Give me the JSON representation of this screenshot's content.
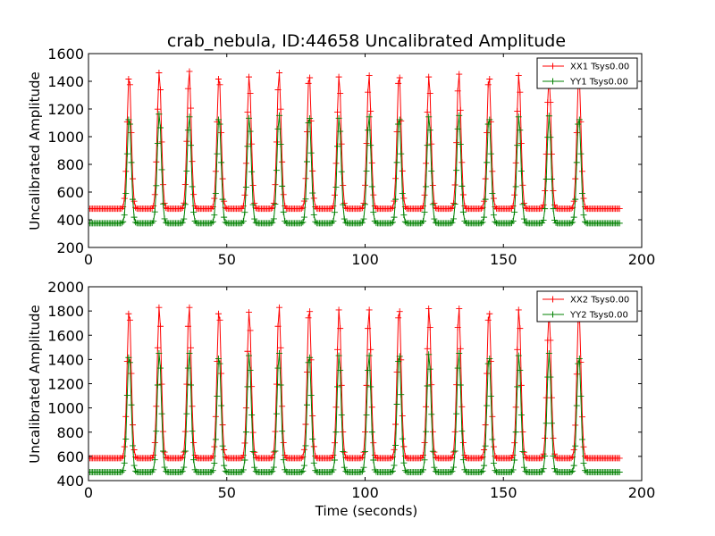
{
  "figure": {
    "title": "crab_nebula, ID:44658 Uncalibrated Amplitude",
    "xlabel": "Time (seconds)"
  },
  "chart_data": [
    {
      "type": "line",
      "title": "crab_nebula, ID:44658 Uncalibrated Amplitude",
      "xlabel": "",
      "ylabel": "Uncalibrated Amplitude",
      "xlim": [
        0,
        200
      ],
      "ylim": [
        200,
        1600
      ],
      "xticks": [
        "0",
        "50",
        "100",
        "150",
        "200"
      ],
      "yticks": [
        "200",
        "400",
        "600",
        "800",
        "1000",
        "1200",
        "1400",
        "1600"
      ],
      "legend_position": "top-right",
      "grid": false,
      "sample_interval": 0.5,
      "x_range": [
        0,
        192
      ],
      "peak_times": [
        14.7,
        25.6,
        36.4,
        47.2,
        58.1,
        68.9,
        79.8,
        90.6,
        101.4,
        112.3,
        123.1,
        133.9,
        144.8,
        155.6,
        166.5,
        177.3
      ],
      "series": [
        {
          "name": "XX1 Tsys0.00",
          "color": "#ff0000",
          "marker": "+",
          "baseline": 480,
          "peak_values": [
            1450,
            1470,
            1480,
            1450,
            1440,
            1470,
            1460,
            1440,
            1450,
            1460,
            1440,
            1460,
            1450,
            1450,
            1440,
            1450
          ]
        },
        {
          "name": "YY1 Tsys0.00",
          "color": "#008000",
          "marker": "+",
          "baseline": 375,
          "peak_values": [
            1150,
            1170,
            1150,
            1150,
            1140,
            1160,
            1160,
            1140,
            1150,
            1150,
            1150,
            1160,
            1150,
            1150,
            1150,
            1150
          ]
        }
      ]
    },
    {
      "type": "line",
      "title": "",
      "xlabel": "Time (seconds)",
      "ylabel": "Uncalibrated Amplitude",
      "xlim": [
        0,
        200
      ],
      "ylim": [
        400,
        2000
      ],
      "xticks": [
        "0",
        "50",
        "100",
        "150",
        "200"
      ],
      "yticks": [
        "400",
        "600",
        "800",
        "1000",
        "1200",
        "1400",
        "1600",
        "1800",
        "2000"
      ],
      "legend_position": "top-right",
      "grid": false,
      "sample_interval": 0.5,
      "x_range": [
        0,
        192
      ],
      "peak_times": [
        14.7,
        25.6,
        36.4,
        47.2,
        58.1,
        68.9,
        79.8,
        90.6,
        101.4,
        112.3,
        123.1,
        133.9,
        144.8,
        155.6,
        166.5,
        177.3
      ],
      "series": [
        {
          "name": "XX2 Tsys0.00",
          "color": "#ff0000",
          "marker": "+",
          "baseline": 585,
          "peak_values": [
            1820,
            1840,
            1840,
            1820,
            1800,
            1840,
            1840,
            1820,
            1820,
            1840,
            1830,
            1830,
            1820,
            1820,
            1800,
            1810
          ]
        },
        {
          "name": "YY2 Tsys0.00",
          "color": "#008000",
          "marker": "+",
          "baseline": 470,
          "peak_values": [
            1450,
            1460,
            1460,
            1440,
            1440,
            1460,
            1450,
            1440,
            1440,
            1460,
            1450,
            1460,
            1440,
            1440,
            1450,
            1440
          ]
        }
      ]
    }
  ]
}
